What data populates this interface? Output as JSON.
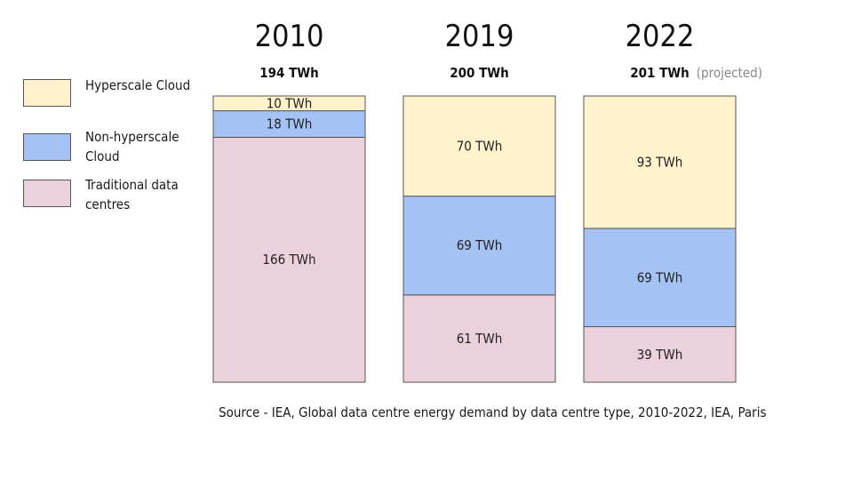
{
  "chart_data": {
    "type": "bar",
    "stacked": true,
    "categories": [
      "2010",
      "2019",
      "2022"
    ],
    "totals": [
      "194 TWh",
      "200 TWh",
      "201 TWh"
    ],
    "total_notes": [
      "",
      "",
      "(projected)"
    ],
    "unit": "TWh",
    "series": [
      {
        "name": "Traditional data centres",
        "values": [
          166,
          61,
          39
        ],
        "labels": [
          "166 TWh",
          "61 TWh",
          "39 TWh"
        ],
        "color": "#ead1dc"
      },
      {
        "name": "Non-hyperscale Cloud",
        "values": [
          18,
          69,
          69
        ],
        "labels": [
          "18 TWh",
          "69 TWh",
          "69 TWh"
        ],
        "color": "#a4c2f4"
      },
      {
        "name": "Hyperscale Cloud",
        "values": [
          10,
          70,
          93
        ],
        "labels": [
          "10 TWh",
          "70 TWh",
          "93 TWh"
        ],
        "color": "#fff2cc"
      }
    ],
    "legend": {
      "placement": "left",
      "entries": [
        "Hyperscale Cloud",
        "Non-hyperscale\nCloud",
        "Traditional data\ncentres"
      ],
      "colors": [
        "#fff2cc",
        "#a4c2f4",
        "#ead1dc"
      ]
    },
    "grid": false,
    "axes_visible": false
  },
  "source": "Source - IEA, Global data centre energy demand by data centre type, 2010-2022, IEA, Paris"
}
